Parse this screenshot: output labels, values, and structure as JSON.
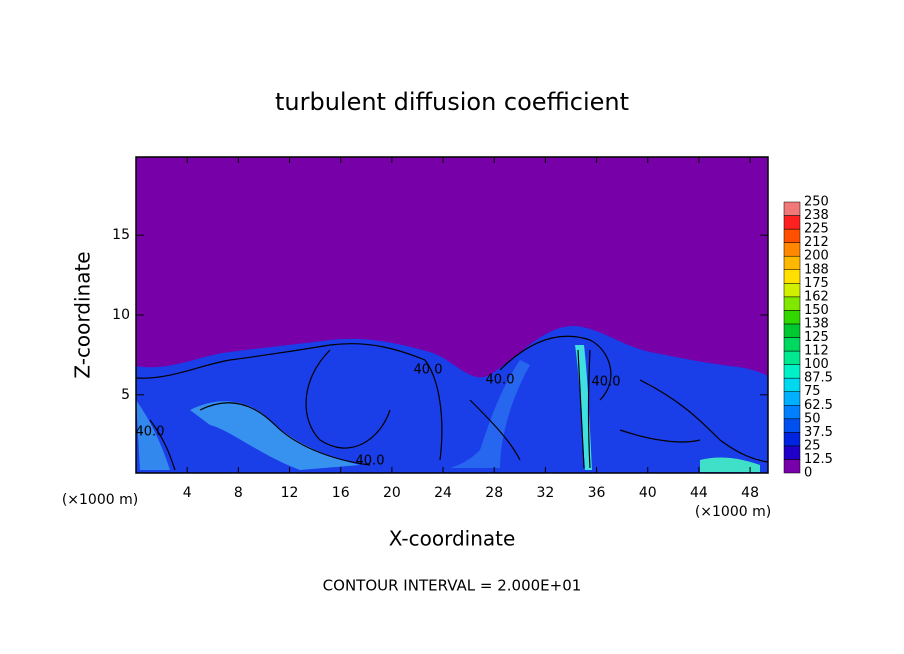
{
  "chart_data": {
    "type": "contour",
    "title": "turbulent diffusion coefficient",
    "x_label": "X-coordinate",
    "y_label": "Z-coordinate",
    "x_unit_labels": [
      "(×1000 m)",
      "(×1000 m)"
    ],
    "footer": "CONTOUR INTERVAL = 2.000E+01",
    "contour_labels": [
      "40.0",
      "40.0",
      "40.0",
      "40.0",
      "40.0"
    ],
    "xlim": [
      0,
      49.4
    ],
    "xticks": [
      4,
      8,
      12,
      16,
      20,
      24,
      28,
      32,
      36,
      40,
      44,
      48
    ],
    "ylim": [
      0.1,
      19.9
    ],
    "yticks": [
      5,
      10,
      15
    ],
    "colorbar": {
      "ticks": [
        0,
        12.5,
        25,
        37.5,
        50,
        62.5,
        75,
        87.5,
        100,
        112,
        125,
        138,
        150,
        162,
        175,
        188,
        200,
        212,
        225,
        238,
        250
      ],
      "colors": [
        "#7800a8",
        "#2000c8",
        "#0024e0",
        "#0050f0",
        "#0080ff",
        "#00b0ff",
        "#00d8f0",
        "#00f0c8",
        "#00e890",
        "#00d860",
        "#00c830",
        "#30d800",
        "#80e800",
        "#d0f000",
        "#ffe000",
        "#ffb800",
        "#ff8800",
        "#ff5000",
        "#ff2020",
        "#f07878"
      ]
    }
  }
}
